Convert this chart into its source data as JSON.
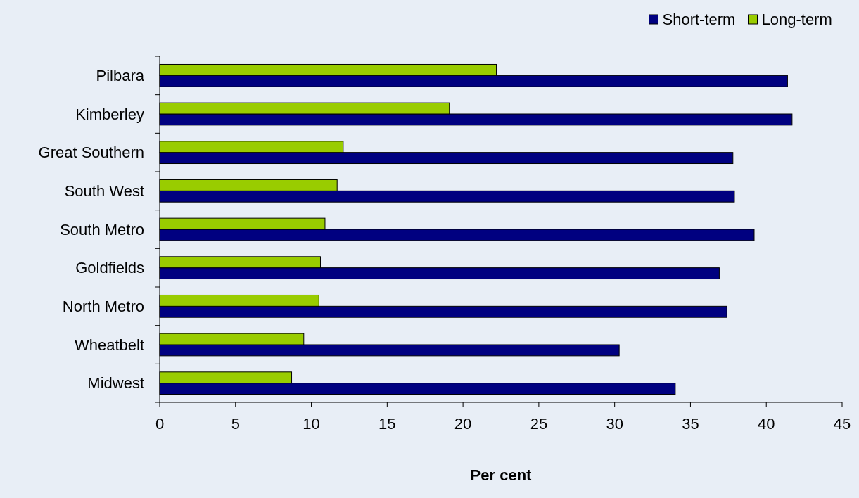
{
  "chart_data": {
    "type": "bar",
    "orientation": "horizontal",
    "xlabel": "Per cent",
    "categories": [
      "Pilbara",
      "Kimberley",
      "Great Southern",
      "South West",
      "South Metro",
      "Goldfields",
      "North Metro",
      "Wheatbelt",
      "Midwest"
    ],
    "series": [
      {
        "name": "Short-term",
        "color": "#000080",
        "values": [
          41.4,
          41.7,
          37.8,
          37.9,
          39.2,
          36.9,
          37.4,
          30.3,
          34.0
        ]
      },
      {
        "name": "Long-term",
        "color": "#99cc00",
        "values": [
          22.2,
          19.1,
          12.1,
          11.7,
          10.9,
          10.6,
          10.5,
          9.5,
          8.7
        ]
      }
    ],
    "xlim": [
      0,
      45
    ],
    "xticks": [
      0,
      5,
      10,
      15,
      20,
      25,
      30,
      35,
      40,
      45
    ],
    "grid": false,
    "legend": "top right"
  }
}
